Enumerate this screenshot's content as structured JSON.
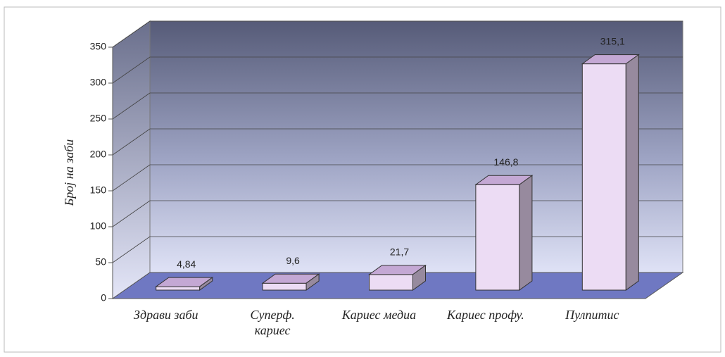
{
  "chart_data": {
    "type": "bar3d",
    "y_axis_label": "Број на заби",
    "categories": [
      "Здрави заби",
      "Суперф.\nкариес",
      "Кариес медиа",
      "Кариес профу.",
      "Пулпитис"
    ],
    "values": [
      4.84,
      9.6,
      21.7,
      146.8,
      315.1
    ],
    "value_labels": [
      "4,84",
      "9,6",
      "21,7",
      "146,8",
      "315,1"
    ],
    "color": "#ecdcf4",
    "ylim": [
      0,
      350
    ],
    "yticks": [
      0,
      50,
      100,
      150,
      200,
      250,
      300,
      350
    ],
    "grid": true
  }
}
